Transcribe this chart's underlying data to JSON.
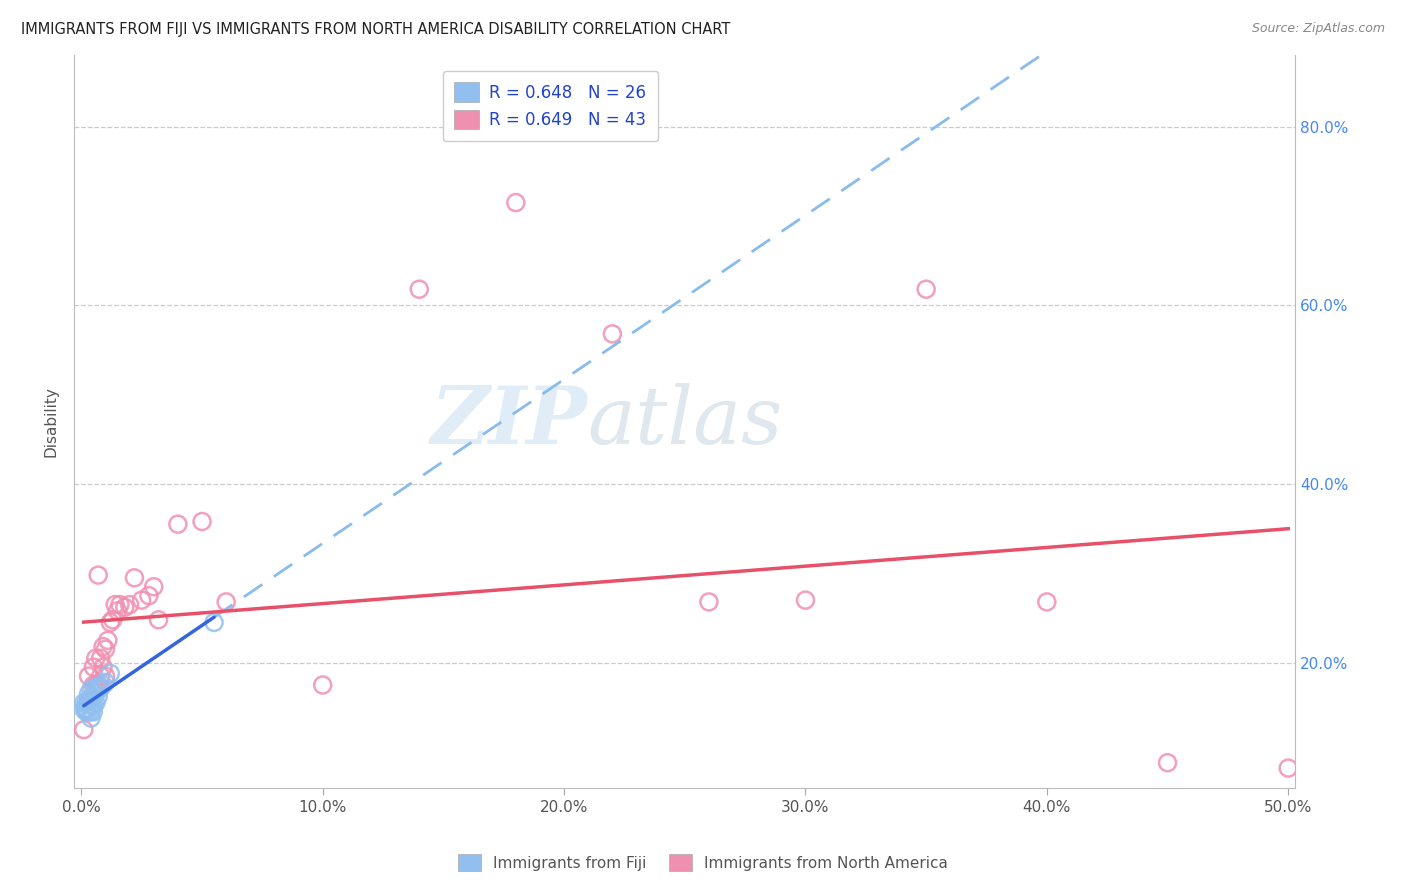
{
  "title": "IMMIGRANTS FROM FIJI VS IMMIGRANTS FROM NORTH AMERICA DISABILITY CORRELATION CHART",
  "source": "Source: ZipAtlas.com",
  "ylabel": "Disability",
  "xlim": [
    -0.003,
    0.503
  ],
  "ylim": [
    0.06,
    0.88
  ],
  "xtick_vals": [
    0.0,
    0.1,
    0.2,
    0.3,
    0.4,
    0.5
  ],
  "xtick_labels": [
    "0.0%",
    "10.0%",
    "20.0%",
    "30.0%",
    "40.0%",
    "50.0%"
  ],
  "ytick_vals": [
    0.2,
    0.4,
    0.6,
    0.8
  ],
  "ytick_labels": [
    "20.0%",
    "40.0%",
    "60.0%",
    "80.0%"
  ],
  "fiji_label": "Immigrants from Fiji",
  "na_label": "Immigrants from North America",
  "fiji_legend": "R = 0.648   N = 26",
  "na_legend": "R = 0.649   N = 43",
  "fiji_color": "#90bff0",
  "na_color": "#f090b0",
  "fiji_line_color": "#3366dd",
  "na_line_color": "#e8506a",
  "dashed_line_color": "#88bbee",
  "watermark_zip": "ZIP",
  "watermark_atlas": "atlas",
  "fiji_x": [
    0.001,
    0.001,
    0.002,
    0.002,
    0.002,
    0.003,
    0.003,
    0.003,
    0.004,
    0.004,
    0.004,
    0.004,
    0.004,
    0.005,
    0.005,
    0.005,
    0.006,
    0.006,
    0.006,
    0.007,
    0.007,
    0.008,
    0.009,
    0.01,
    0.012,
    0.055
  ],
  "fiji_y": [
    0.155,
    0.148,
    0.148,
    0.155,
    0.145,
    0.145,
    0.158,
    0.165,
    0.138,
    0.145,
    0.152,
    0.162,
    0.17,
    0.152,
    0.16,
    0.145,
    0.165,
    0.155,
    0.172,
    0.162,
    0.17,
    0.172,
    0.175,
    0.178,
    0.188,
    0.245
  ],
  "na_x": [
    0.001,
    0.002,
    0.003,
    0.003,
    0.004,
    0.005,
    0.005,
    0.006,
    0.006,
    0.007,
    0.007,
    0.008,
    0.008,
    0.009,
    0.009,
    0.01,
    0.01,
    0.011,
    0.012,
    0.013,
    0.014,
    0.015,
    0.016,
    0.018,
    0.02,
    0.022,
    0.025,
    0.028,
    0.03,
    0.032,
    0.04,
    0.05,
    0.06,
    0.1,
    0.14,
    0.18,
    0.22,
    0.26,
    0.3,
    0.35,
    0.4,
    0.45,
    0.5
  ],
  "na_y": [
    0.125,
    0.148,
    0.158,
    0.185,
    0.158,
    0.195,
    0.175,
    0.175,
    0.205,
    0.175,
    0.298,
    0.185,
    0.205,
    0.195,
    0.218,
    0.185,
    0.215,
    0.225,
    0.245,
    0.248,
    0.265,
    0.258,
    0.265,
    0.262,
    0.265,
    0.295,
    0.27,
    0.275,
    0.285,
    0.248,
    0.355,
    0.358,
    0.268,
    0.175,
    0.618,
    0.715,
    0.568,
    0.268,
    0.27,
    0.618,
    0.268,
    0.088,
    0.082
  ]
}
